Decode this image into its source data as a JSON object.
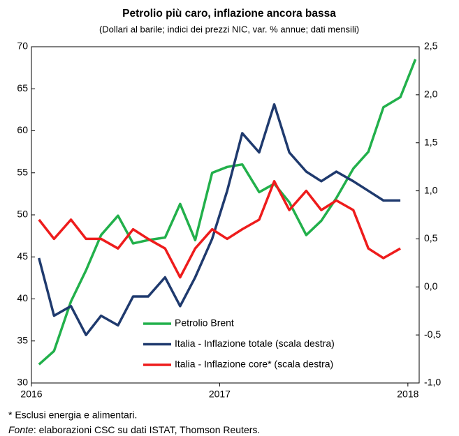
{
  "chart_data": {
    "type": "line",
    "title": "Petrolio più caro, inflazione ancora bassa",
    "subtitle": "(Dollari al barile; indici dei prezzi NIC, var. % annue; dati mensili)",
    "x": [
      2016.04,
      2016.12,
      2016.21,
      2016.29,
      2016.37,
      2016.46,
      2016.54,
      2016.62,
      2016.71,
      2016.79,
      2016.87,
      2016.96,
      2017.04,
      2017.12,
      2017.21,
      2017.29,
      2017.37,
      2017.46,
      2017.54,
      2017.62,
      2017.71,
      2017.79,
      2017.87,
      2017.96,
      2018.04
    ],
    "xlim": [
      2016,
      2018.06
    ],
    "xticks": [
      2016,
      2017,
      2018
    ],
    "ylim": [
      30,
      70
    ],
    "yticks": [
      30,
      35,
      40,
      45,
      50,
      55,
      60,
      65,
      70
    ],
    "y2lim": [
      -1.0,
      2.5
    ],
    "y2ticks": [
      {
        "value": -1.0,
        "label": "-1,0"
      },
      {
        "value": -0.5,
        "label": "-0,5"
      },
      {
        "value": 0.0,
        "label": "0,0"
      },
      {
        "value": 0.5,
        "label": "0,5"
      },
      {
        "value": 1.0,
        "label": "1,0"
      },
      {
        "value": 1.5,
        "label": "1,5"
      },
      {
        "value": 2.0,
        "label": "2,0"
      },
      {
        "value": 2.5,
        "label": "2,5"
      }
    ],
    "series": [
      {
        "name": "Petrolio Brent",
        "color": "#22b04b",
        "values": [
          32.2,
          33.8,
          39.7,
          43.4,
          47.6,
          49.9,
          46.6,
          47.0,
          47.3,
          51.3,
          47.0,
          55.0,
          55.7,
          56.0,
          52.7,
          53.7,
          51.5,
          47.6,
          49.3,
          52.0,
          55.5,
          57.5,
          62.8,
          64.0,
          68.5
        ]
      },
      {
        "name": "Italia - Inflazione  totale (scala destra)",
        "color": "#1f3a6e",
        "axis": "y2",
        "values": [
          0.3,
          -0.3,
          -0.2,
          -0.5,
          -0.3,
          -0.4,
          -0.1,
          -0.1,
          0.1,
          -0.2,
          0.1,
          0.5,
          1.0,
          1.6,
          1.4,
          1.9,
          1.4,
          1.2,
          1.1,
          1.2,
          1.1,
          1.0,
          0.9,
          0.9,
          null
        ]
      },
      {
        "name": "Italia - Inflazione  core* (scala destra)",
        "color": "#ee1c1c",
        "axis": "y2",
        "values": [
          0.7,
          0.5,
          0.7,
          0.5,
          0.5,
          0.4,
          0.6,
          0.5,
          0.4,
          0.1,
          0.4,
          0.6,
          0.5,
          0.6,
          0.7,
          1.1,
          0.8,
          1.0,
          0.8,
          0.9,
          0.8,
          0.4,
          0.3,
          0.4,
          null
        ]
      }
    ],
    "footnote": "* Esclusi energia e alimentari.",
    "source": {
      "label": "Fonte",
      "text": ": elaborazioni CSC su dati ISTAT, Thomson Reuters."
    }
  }
}
